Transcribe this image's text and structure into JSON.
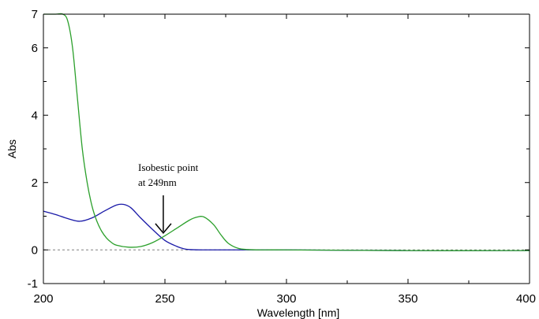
{
  "chart_data": {
    "type": "line",
    "title": "",
    "xlabel": "Wavelength [nm]",
    "ylabel": "Abs",
    "xlim": [
      200,
      400
    ],
    "ylim": [
      -1,
      7
    ],
    "x_ticks": [
      "200",
      "250",
      "300",
      "350",
      "400"
    ],
    "y_ticks": [
      "-1",
      "0",
      "2",
      "4",
      "6",
      "7"
    ],
    "grid": false,
    "legend": "none",
    "baseline": {
      "y": 0,
      "style": "dashed",
      "color": "#808080"
    },
    "series": [
      {
        "color": "#1a1aa8",
        "x": [
          200,
          205,
          210,
          215,
          220,
          225,
          230,
          233,
          236,
          240,
          245,
          250,
          255,
          258,
          260,
          265,
          270,
          280,
          300,
          350,
          400
        ],
        "y": [
          1.15,
          1.05,
          0.93,
          0.85,
          0.95,
          1.15,
          1.33,
          1.35,
          1.25,
          0.95,
          0.6,
          0.28,
          0.1,
          0.03,
          0.01,
          0.0,
          0.0,
          0.0,
          0.0,
          -0.02,
          -0.02
        ]
      },
      {
        "color": "#2ca02c",
        "x": [
          200,
          205,
          208,
          210,
          212,
          214,
          216,
          218,
          220,
          222,
          224,
          226,
          228,
          230,
          235,
          240,
          245,
          250,
          255,
          260,
          263,
          266,
          270,
          273,
          276,
          280,
          284,
          290,
          300,
          350,
          400
        ],
        "y": [
          7.0,
          7.0,
          7.0,
          6.8,
          6.0,
          4.5,
          3.0,
          2.0,
          1.3,
          0.85,
          0.55,
          0.35,
          0.22,
          0.14,
          0.08,
          0.1,
          0.22,
          0.42,
          0.65,
          0.88,
          0.97,
          0.98,
          0.75,
          0.45,
          0.2,
          0.05,
          0.01,
          0.0,
          0.0,
          -0.02,
          -0.02
        ]
      }
    ],
    "annotation": {
      "lines": [
        "Isobestic point",
        "at 249nm"
      ],
      "x": 249,
      "y": 0.5
    }
  }
}
